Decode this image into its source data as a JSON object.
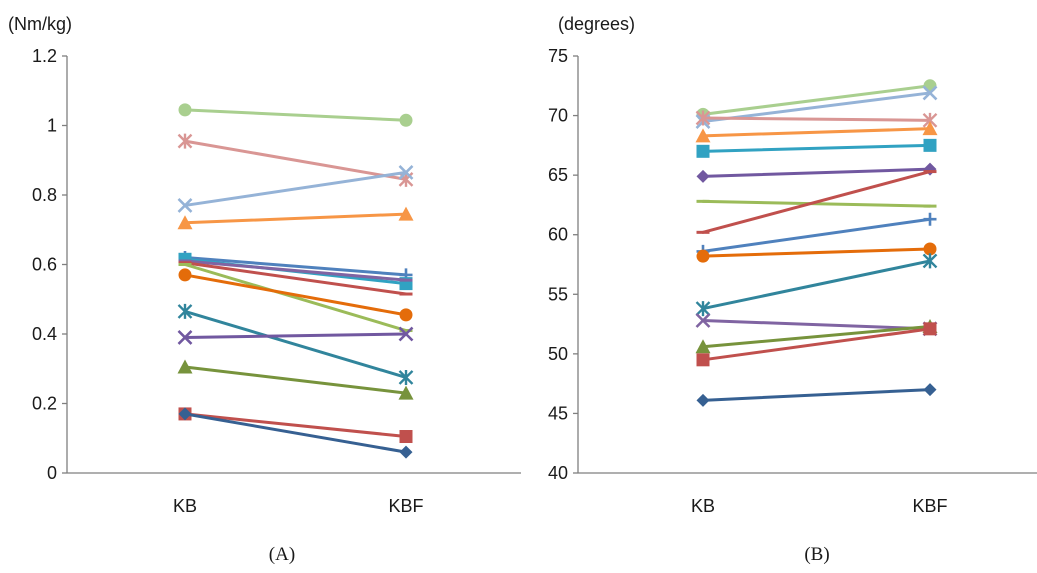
{
  "chart_data": [
    {
      "type": "line",
      "panel_label": "(A)",
      "y_unit": "(Nm/kg)",
      "categories": [
        "KB",
        "KBF"
      ],
      "ylim": [
        0,
        1.2
      ],
      "yticks": [
        "0",
        "0.2",
        "0.4",
        "0.6",
        "0.8",
        "1",
        "1.2"
      ],
      "grid": false,
      "series": [
        {
          "values": [
            1.045,
            1.015
          ],
          "color": "#a9cf8f",
          "marker": "circle"
        },
        {
          "values": [
            0.955,
            0.845
          ],
          "color": "#d99694",
          "marker": "star"
        },
        {
          "values": [
            0.77,
            0.865
          ],
          "color": "#95b3d7",
          "marker": "x"
        },
        {
          "values": [
            0.72,
            0.745
          ],
          "color": "#f79646",
          "marker": "triangle"
        },
        {
          "values": [
            0.62,
            0.57
          ],
          "color": "#4f81bd",
          "marker": "plus"
        },
        {
          "values": [
            0.615,
            0.545
          ],
          "color": "#31a2c2",
          "marker": "square"
        },
        {
          "values": [
            0.61,
            0.555
          ],
          "color": "#8064a2",
          "marker": "dash"
        },
        {
          "values": [
            0.605,
            0.515
          ],
          "color": "#c0504d",
          "marker": "dash"
        },
        {
          "values": [
            0.6,
            0.41
          ],
          "color": "#9bbb59",
          "marker": "dash"
        },
        {
          "values": [
            0.57,
            0.455
          ],
          "color": "#e46c0a",
          "marker": "circle"
        },
        {
          "values": [
            0.465,
            0.275
          ],
          "color": "#31859c",
          "marker": "star"
        },
        {
          "values": [
            0.39,
            0.4
          ],
          "color": "#7158a0",
          "marker": "x"
        },
        {
          "values": [
            0.305,
            0.23
          ],
          "color": "#77933c",
          "marker": "triangle"
        },
        {
          "values": [
            0.17,
            0.105
          ],
          "color": "#c0504d",
          "marker": "square"
        },
        {
          "values": [
            0.17,
            0.06
          ],
          "color": "#366092",
          "marker": "diamond"
        }
      ]
    },
    {
      "type": "line",
      "panel_label": "(B)",
      "y_unit": "(degrees)",
      "categories": [
        "KB",
        "KBF"
      ],
      "ylim": [
        40,
        75
      ],
      "yticks": [
        "40",
        "45",
        "50",
        "55",
        "60",
        "65",
        "70",
        "75"
      ],
      "grid": false,
      "series": [
        {
          "values": [
            70.1,
            72.5
          ],
          "color": "#a9cf8f",
          "marker": "circle"
        },
        {
          "values": [
            69.5,
            71.9
          ],
          "color": "#95b3d7",
          "marker": "x"
        },
        {
          "values": [
            69.8,
            69.6
          ],
          "color": "#d99694",
          "marker": "star"
        },
        {
          "values": [
            68.3,
            68.9
          ],
          "color": "#f79646",
          "marker": "triangle"
        },
        {
          "values": [
            67.0,
            67.5
          ],
          "color": "#31a2c2",
          "marker": "square"
        },
        {
          "values": [
            64.9,
            65.5
          ],
          "color": "#7158a0",
          "marker": "diamond"
        },
        {
          "values": [
            62.8,
            62.4
          ],
          "color": "#9bbb59",
          "marker": "dash"
        },
        {
          "values": [
            60.2,
            65.3
          ],
          "color": "#c0504d",
          "marker": "dash"
        },
        {
          "values": [
            58.6,
            61.3
          ],
          "color": "#4f81bd",
          "marker": "plus"
        },
        {
          "values": [
            58.2,
            58.8
          ],
          "color": "#e46c0a",
          "marker": "circle"
        },
        {
          "values": [
            53.8,
            57.8
          ],
          "color": "#31859c",
          "marker": "star"
        },
        {
          "values": [
            52.8,
            52.1
          ],
          "color": "#8064a2",
          "marker": "x"
        },
        {
          "values": [
            50.6,
            52.3
          ],
          "color": "#77933c",
          "marker": "triangle"
        },
        {
          "values": [
            49.5,
            52.1
          ],
          "color": "#c0504d",
          "marker": "square"
        },
        {
          "values": [
            46.1,
            47.0
          ],
          "color": "#366092",
          "marker": "diamond"
        }
      ]
    }
  ]
}
